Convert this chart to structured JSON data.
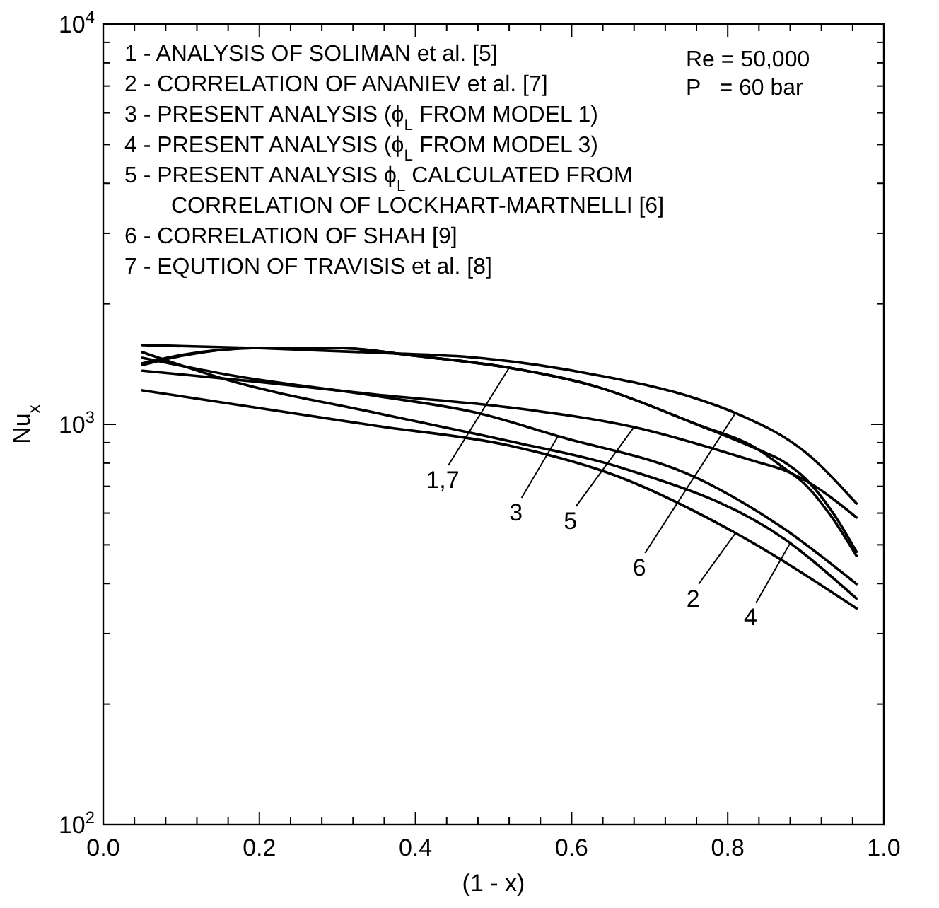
{
  "chart_data": {
    "type": "line",
    "xlabel": "(1 - x)",
    "ylabel": "Nu$_{x}$",
    "log": "y",
    "grid": false,
    "xlim": [
      0,
      1
    ],
    "ylim": [
      100,
      10000
    ],
    "xticks": [
      {
        "value": 0,
        "label": "0.0"
      },
      {
        "value": 0.04,
        "label": null
      },
      {
        "value": 0.08,
        "label": null
      },
      {
        "value": 0.12,
        "label": null
      },
      {
        "value": 0.16,
        "label": null
      },
      {
        "value": 0.2,
        "label": "0.2"
      },
      {
        "value": 0.24,
        "label": null
      },
      {
        "value": 0.28,
        "label": null
      },
      {
        "value": 0.32,
        "label": null
      },
      {
        "value": 0.36,
        "label": null
      },
      {
        "value": 0.4,
        "label": "0.4"
      },
      {
        "value": 0.44,
        "label": null
      },
      {
        "value": 0.48,
        "label": null
      },
      {
        "value": 0.52,
        "label": null
      },
      {
        "value": 0.56,
        "label": null
      },
      {
        "value": 0.6,
        "label": "0.6"
      },
      {
        "value": 0.64,
        "label": null
      },
      {
        "value": 0.68,
        "label": null
      },
      {
        "value": 0.72,
        "label": null
      },
      {
        "value": 0.76,
        "label": null
      },
      {
        "value": 0.8,
        "label": "0.8"
      },
      {
        "value": 0.84,
        "label": null
      },
      {
        "value": 0.88,
        "label": null
      },
      {
        "value": 0.92,
        "label": null
      },
      {
        "value": 0.96,
        "label": null
      },
      {
        "value": 1,
        "label": "1.0"
      }
    ],
    "yticks": [
      {
        "value": 100,
        "label": "10$^{2}$"
      },
      {
        "value": 200,
        "label": null
      },
      {
        "value": 300,
        "label": null
      },
      {
        "value": 400,
        "label": null
      },
      {
        "value": 500,
        "label": null
      },
      {
        "value": 600,
        "label": null
      },
      {
        "value": 700,
        "label": null
      },
      {
        "value": 800,
        "label": null
      },
      {
        "value": 900,
        "label": null
      },
      {
        "value": 1000,
        "label": "10$^{3}$"
      },
      {
        "value": 2000,
        "label": null
      },
      {
        "value": 3000,
        "label": null
      },
      {
        "value": 4000,
        "label": null
      },
      {
        "value": 5000,
        "label": null
      },
      {
        "value": 6000,
        "label": null
      },
      {
        "value": 7000,
        "label": null
      },
      {
        "value": 8000,
        "label": null
      },
      {
        "value": 9000,
        "label": null
      },
      {
        "value": 10000,
        "label": "10$^{4}$"
      }
    ],
    "series": [
      {
        "color": "#000000",
        "x": [
          0.05,
          0.1,
          0.2,
          0.3,
          0.4,
          0.52,
          0.63,
          0.76,
          0.84,
          0.87,
          0.9,
          0.935,
          0.965
        ],
        "values": [
          1406,
          1482,
          1552,
          1552,
          1482,
          1385,
          1245,
          1000,
          863,
          783,
          705,
          580,
          469
        ]
      },
      {
        "color": "#000000",
        "x": [
          0.05,
          0.1,
          0.2,
          0.3,
          0.4,
          0.52,
          0.63,
          0.76,
          0.84,
          0.87,
          0.9,
          0.935,
          0.965
        ],
        "values": [
          1420,
          1490,
          1552,
          1552,
          1482,
          1385,
          1245,
          1000,
          863,
          810,
          730,
          600,
          480
        ]
      },
      {
        "color": "#000000",
        "x": [
          0.05,
          0.16,
          0.35,
          0.48,
          0.58,
          0.76,
          0.87,
          0.965
        ],
        "values": [
          1466,
          1330,
          1177,
          1067,
          937,
          735,
          552,
          399
        ]
      },
      {
        "color": "#000000",
        "x": [
          0.05,
          0.16,
          0.35,
          0.52,
          0.66,
          0.88,
          0.965
        ],
        "values": [
          1514,
          1289,
          1067,
          908,
          783,
          505,
          367
        ]
      },
      {
        "color": "#000000",
        "x": [
          0.05,
          0.2,
          0.35,
          0.52,
          0.68,
          0.84,
          0.87,
          0.9,
          0.965
        ],
        "values": [
          1361,
          1276,
          1186,
          1102,
          984,
          803,
          771,
          723,
          585
        ]
      },
      {
        "color": "#000000",
        "x": [
          0.05,
          0.2,
          0.35,
          0.48,
          0.63,
          0.76,
          0.81,
          0.9,
          0.965
        ],
        "values": [
          1578,
          1550,
          1510,
          1466,
          1330,
          1159,
          1067,
          850,
          634
        ]
      },
      {
        "color": "#000000",
        "x": [
          0.05,
          0.35,
          0.52,
          0.66,
          0.81,
          0.965
        ],
        "values": [
          1216,
          991,
          885,
          740,
          535,
          347
        ]
      }
    ],
    "annotations": [
      "1 - ANALYSIS OF SOLIMAN et al. [5]",
      "2 - CORRELATION OF ANANIEV et al. [7]",
      "3 - PRESENT ANALYSIS (ϕ$_{L}$ FROM MODEL 1)",
      "4 - PRESENT ANALYSIS (ϕ$_{L}$ FROM MODEL 3)",
      "5 - PRESENT ANALYSIS ϕ$_{L}$ CALCULATED FROM",
      "CORRELATION OF LOCKHART-MARTNELLI [6]",
      "6 - CORRELATION OF SHAH [9]",
      "7 - EQUTION OF TRAVISIS et al. [8]",
      "Re = 50,000",
      "P   = 60 bar",
      {
        "text": "1,7",
        "x": 0.52,
        "y": 1385
      },
      {
        "text": "3",
        "x": 0.583,
        "y": 937
      },
      {
        "text": "5",
        "x": 0.68,
        "y": 984
      },
      {
        "text": "6",
        "x": 0.81,
        "y": 1067
      },
      {
        "text": "2",
        "x": 0.81,
        "y": 535
      },
      {
        "text": "4",
        "x": 0.88,
        "y": 505
      }
    ]
  }
}
